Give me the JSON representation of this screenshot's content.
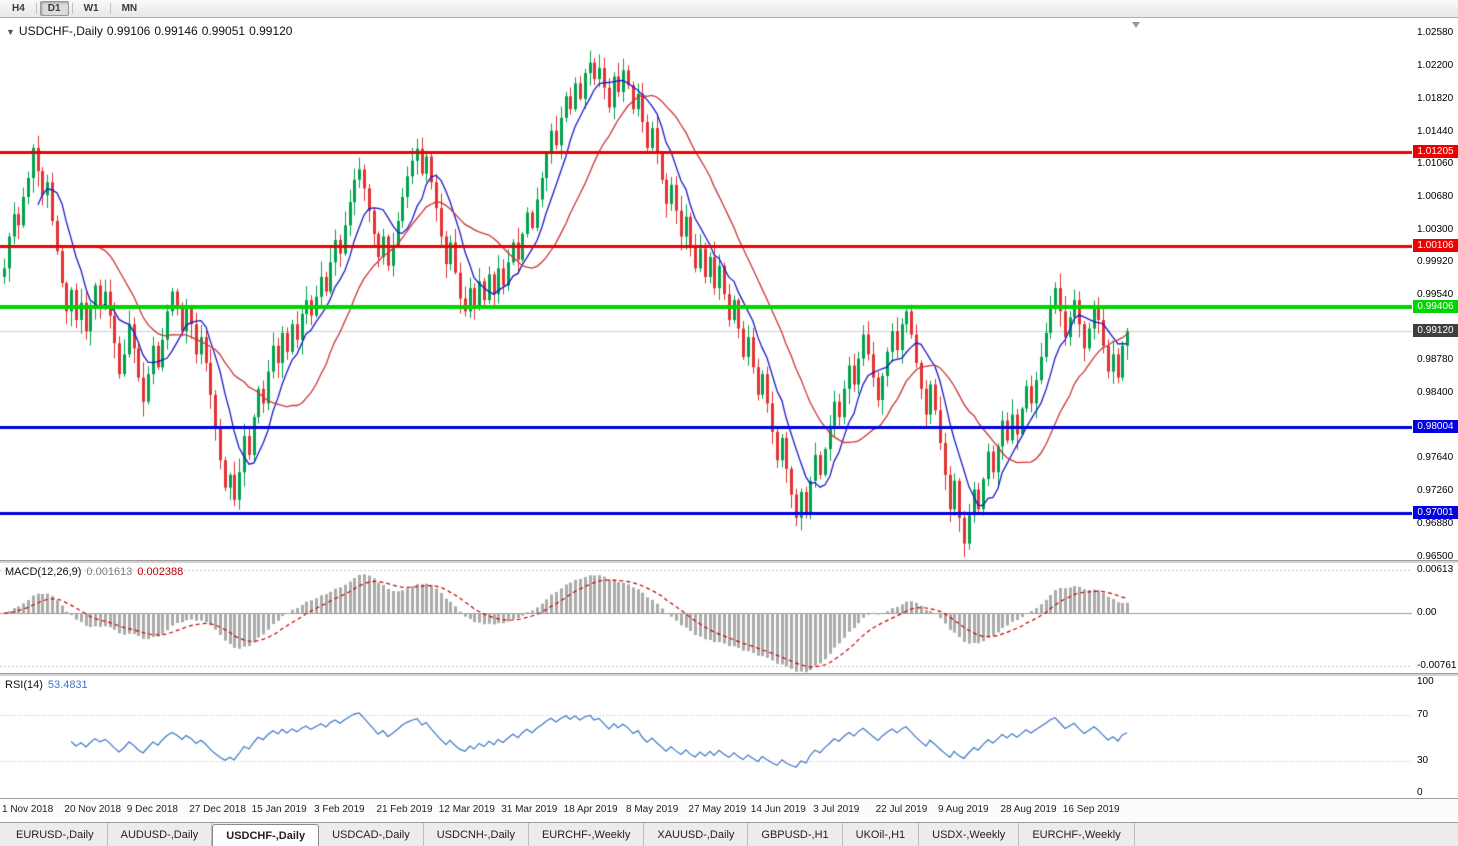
{
  "toolbar": {
    "timeframes": [
      {
        "label": "H4",
        "active": false
      },
      {
        "label": "D1",
        "active": true
      },
      {
        "label": "W1",
        "active": false
      },
      {
        "label": "MN",
        "active": false
      }
    ]
  },
  "chart": {
    "title": {
      "symbol": "USDCHF-,Daily",
      "open": "0.99106",
      "high": "0.99146",
      "low": "0.99051",
      "close": "0.99120"
    },
    "price_axis_ticks": [
      {
        "label": "1.02580",
        "value": 1.0258
      },
      {
        "label": "1.02200",
        "value": 1.022
      },
      {
        "label": "1.01820",
        "value": 1.0182
      },
      {
        "label": "1.01440",
        "value": 1.0144
      },
      {
        "label": "1.01060",
        "value": 1.0106
      },
      {
        "label": "1.00680",
        "value": 1.0068
      },
      {
        "label": "1.00300",
        "value": 1.003
      },
      {
        "label": "0.99920",
        "value": 0.9992
      },
      {
        "label": "0.99540",
        "value": 0.9954
      },
      {
        "label": "0.98780",
        "value": 0.9878
      },
      {
        "label": "0.98400",
        "value": 0.984
      },
      {
        "label": "0.97640",
        "value": 0.9764
      },
      {
        "label": "0.97260",
        "value": 0.9726
      },
      {
        "label": "0.96880",
        "value": 0.9688
      },
      {
        "label": "0.96500",
        "value": 0.965
      }
    ],
    "levels": [
      {
        "label": "1.01205",
        "value": 1.01205,
        "color": "#ee0000",
        "line_width": 3
      },
      {
        "label": "1.00106",
        "value": 1.00106,
        "color": "#ee0000",
        "line_width": 3
      },
      {
        "label": "0.99406",
        "value": 0.99406,
        "color": "#00d400",
        "line_width": 4
      },
      {
        "label": "0.98004",
        "value": 0.98004,
        "color": "#0000e0",
        "line_width": 3
      },
      {
        "label": "0.97001",
        "value": 0.97001,
        "color": "#0000e0",
        "line_width": 3
      }
    ],
    "current_price": {
      "label": "0.99120",
      "value": 0.9912,
      "tag_color": "#3f3f3f"
    }
  },
  "chart_data": {
    "type": "candlestick",
    "title": "USDCHF-,Daily",
    "x_labels": [
      {
        "label": "1 Nov 2018",
        "index": 0
      },
      {
        "label": "20 Nov 2018",
        "index": 13
      },
      {
        "label": "9 Dec 2018",
        "index": 26
      },
      {
        "label": "27 Dec 2018",
        "index": 39
      },
      {
        "label": "15 Jan 2019",
        "index": 52
      },
      {
        "label": "3 Feb 2019",
        "index": 65
      },
      {
        "label": "21 Feb 2019",
        "index": 78
      },
      {
        "label": "12 Mar 2019",
        "index": 91
      },
      {
        "label": "31 Mar 2019",
        "index": 104
      },
      {
        "label": "18 Apr 2019",
        "index": 117
      },
      {
        "label": "8 May 2019",
        "index": 130
      },
      {
        "label": "27 May 2019",
        "index": 143
      },
      {
        "label": "14 Jun 2019",
        "index": 156
      },
      {
        "label": "3 Jul 2019",
        "index": 169
      },
      {
        "label": "22 Jul 2019",
        "index": 182
      },
      {
        "label": "9 Aug 2019",
        "index": 195
      },
      {
        "label": "28 Aug 2019",
        "index": 208
      },
      {
        "label": "16 Sep 2019",
        "index": 221
      }
    ],
    "open_first": 0.9975,
    "closes": [
      0.9985,
      1.0022,
      1.0048,
      1.0035,
      1.0068,
      1.009,
      1.0125,
      1.0098,
      1.007,
      1.0085,
      1.004,
      1.0005,
      0.9968,
      0.9935,
      0.996,
      0.9925,
      0.9945,
      0.9912,
      0.9938,
      0.9965,
      0.9942,
      0.9958,
      0.993,
      0.9898,
      0.9862,
      0.9885,
      0.992,
      0.9892,
      0.9858,
      0.983,
      0.9862,
      0.9895,
      0.987,
      0.9902,
      0.9935,
      0.9958,
      0.994,
      0.9912,
      0.9938,
      0.992,
      0.9885,
      0.9905,
      0.9875,
      0.9838,
      0.98,
      0.9762,
      0.973,
      0.9745,
      0.9716,
      0.9748,
      0.979,
      0.9768,
      0.9812,
      0.9845,
      0.9828,
      0.9865,
      0.9895,
      0.9875,
      0.991,
      0.9888,
      0.992,
      0.9902,
      0.9932,
      0.9948,
      0.993,
      0.9952,
      0.9975,
      0.9958,
      0.9992,
      1.0018,
      1.0002,
      1.0035,
      1.0062,
      1.0088,
      1.01,
      1.0078,
      1.0052,
      1.0025,
      0.9998,
      1.0022,
      0.9988,
      1.0012,
      1.004,
      1.0068,
      1.0092,
      1.011,
      1.0124,
      1.0095,
      1.0115,
      1.0085,
      1.0055,
      1.0022,
      0.999,
      1.0015,
      0.998,
      0.995,
      0.9935,
      0.9962,
      0.994,
      0.997,
      0.9948,
      0.9978,
      0.9955,
      0.9985,
      0.9965,
      0.9992,
      1.0015,
      0.9995,
      1.0025,
      1.005,
      1.0032,
      1.0065,
      1.009,
      1.0118,
      1.0145,
      1.0128,
      1.016,
      1.0185,
      1.017,
      1.02,
      1.0182,
      1.0212,
      1.0224,
      1.0205,
      1.0218,
      1.0195,
      1.0172,
      1.0208,
      1.019,
      1.0215,
      1.0198,
      1.017,
      1.0188,
      1.0155,
      1.0125,
      1.0148,
      1.0118,
      1.0088,
      1.006,
      1.0082,
      1.0052,
      1.0022,
      1.0045,
      1.0012,
      0.9985,
      1.0008,
      0.9975,
      0.9998,
      0.9962,
      0.9988,
      0.9955,
      0.9925,
      0.9948,
      0.9915,
      0.9882,
      0.9905,
      0.987,
      0.9838,
      0.9862,
      0.9828,
      0.9795,
      0.9762,
      0.9788,
      0.9752,
      0.9722,
      0.9695,
      0.9725,
      0.97,
      0.9738,
      0.9768,
      0.9745,
      0.9775,
      0.9802,
      0.983,
      0.9812,
      0.9845,
      0.9872,
      0.985,
      0.988,
      0.9908,
      0.9885,
      0.9858,
      0.9832,
      0.986,
      0.9888,
      0.9912,
      0.989,
      0.992,
      0.9935,
      0.9908,
      0.9875,
      0.9845,
      0.9815,
      0.985,
      0.982,
      0.9782,
      0.9745,
      0.9705,
      0.9738,
      0.9695,
      0.9665,
      0.9698,
      0.9728,
      0.9705,
      0.974,
      0.9772,
      0.9748,
      0.9778,
      0.9808,
      0.9785,
      0.9815,
      0.9792,
      0.9822,
      0.9848,
      0.9828,
      0.9855,
      0.9882,
      0.991,
      0.9938,
      0.9962,
      0.9935,
      0.9905,
      0.9928,
      0.9948,
      0.992,
      0.9892,
      0.9915,
      0.9942,
      0.9925,
      0.9895,
      0.9865,
      0.9885,
      0.9858,
      0.9895,
      0.9912
    ],
    "colors": {
      "up": "#00a24e",
      "down": "#e23232",
      "ma_fast": "#1a1ac8",
      "ma_slow": "#cc3535",
      "macd_hist": "#ababab",
      "macd_signal": "#cc0000",
      "rsi": "#3e76c8",
      "current_line": "#cfcfcf"
    },
    "ma_fast_period": 8,
    "ma_slow_period": 20,
    "macd": {
      "label": "MACD(12,26,9)",
      "value": "0.001613",
      "signal_value": "0.002388",
      "axis_ticks": [
        {
          "label": "0.00613",
          "value": 0.00613
        },
        {
          "label": "0.00",
          "value": 0
        },
        {
          "label": "-0.00761",
          "value": -0.00761
        }
      ]
    },
    "rsi": {
      "label": "RSI(14)",
      "value": "53.4831",
      "axis_ticks": [
        {
          "label": "100",
          "value": 100
        },
        {
          "label": "70",
          "value": 70
        },
        {
          "label": "30",
          "value": 30
        },
        {
          "label": "0",
          "value": 0
        }
      ],
      "guide_levels": [
        70,
        30
      ]
    }
  },
  "tabs": [
    {
      "label": "EURUSD-,Daily",
      "active": false
    },
    {
      "label": "AUDUSD-,Daily",
      "active": false
    },
    {
      "label": "USDCHF-,Daily",
      "active": true
    },
    {
      "label": "USDCAD-,Daily",
      "active": false
    },
    {
      "label": "USDCNH-,Daily",
      "active": false
    },
    {
      "label": "EURCHF-,Weekly",
      "active": false
    },
    {
      "label": "XAUUSD-,Daily",
      "active": false
    },
    {
      "label": "GBPUSD-,H1",
      "active": false
    },
    {
      "label": "UKOil-,H1",
      "active": false
    },
    {
      "label": "USDX-,Weekly",
      "active": false
    },
    {
      "label": "EURCHF-,Weekly",
      "active": false
    }
  ]
}
